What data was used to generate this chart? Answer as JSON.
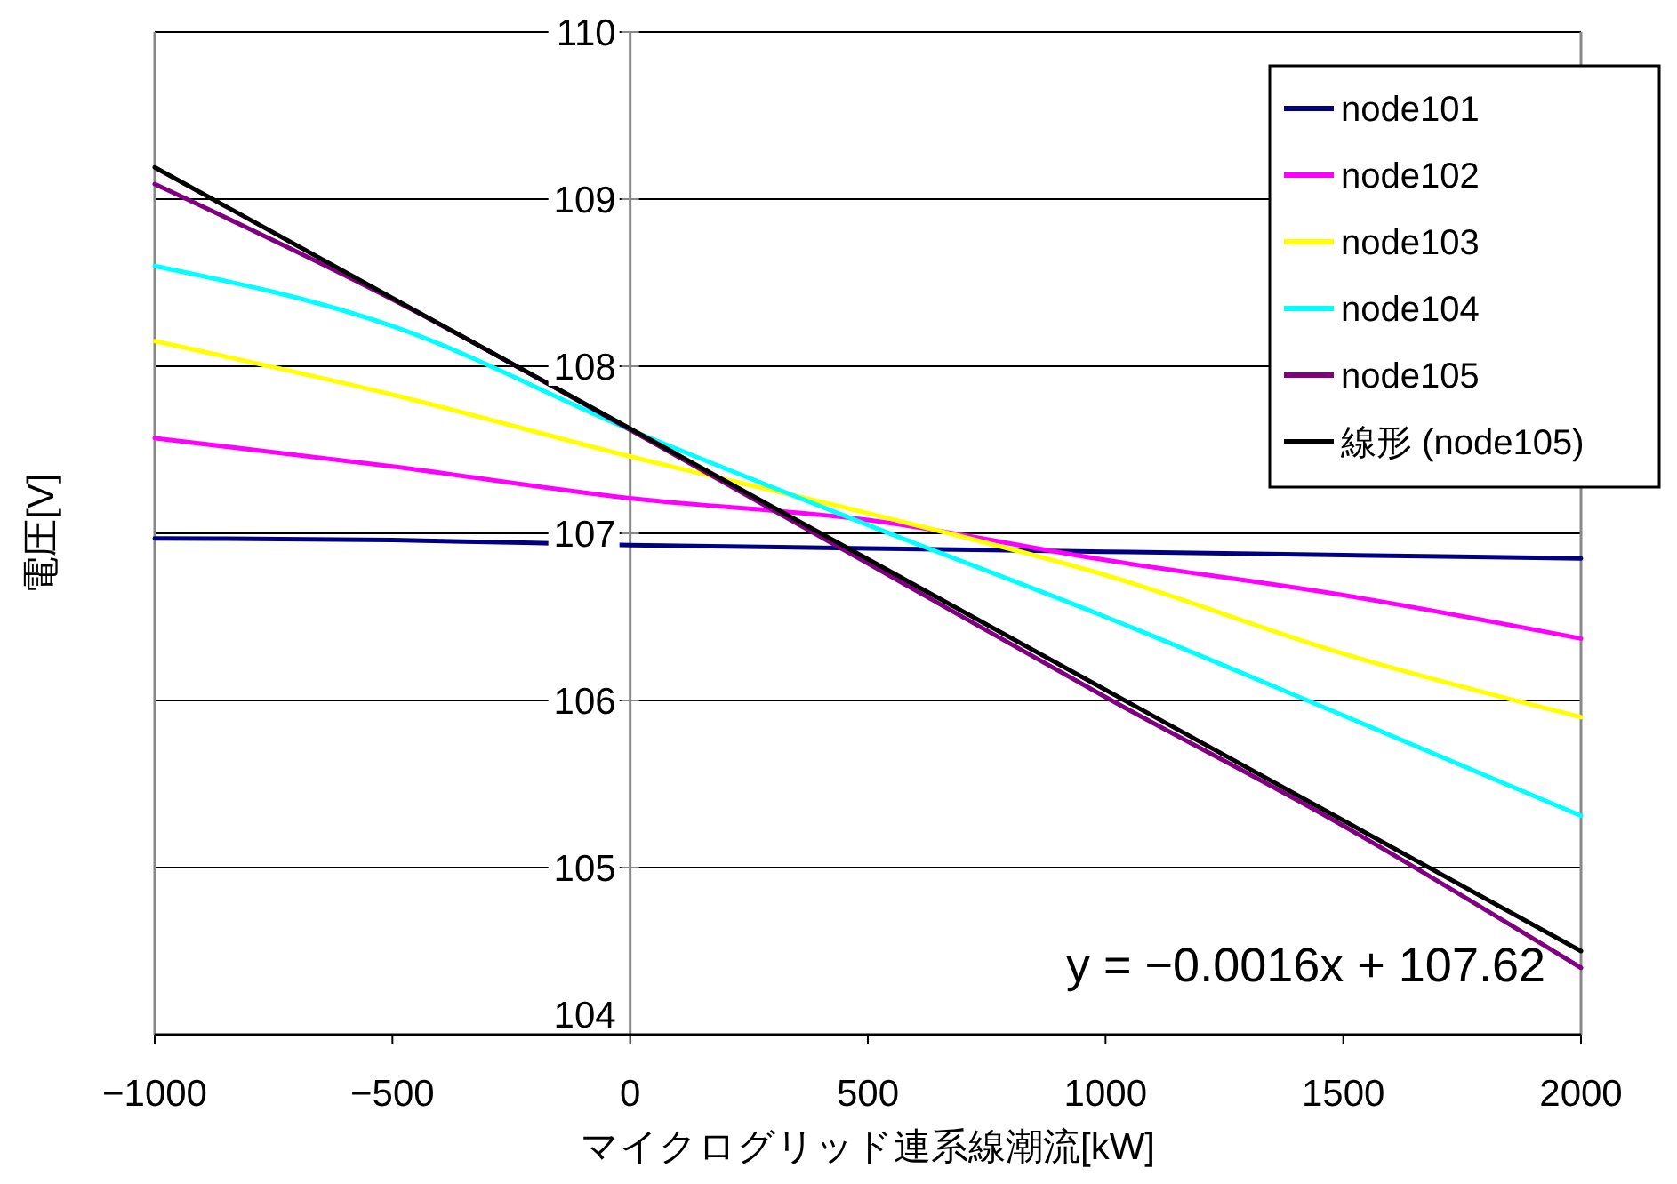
{
  "chart_data": {
    "type": "line",
    "xlabel": "マイクログリッド連系線潮流[kW]",
    "ylabel": "電圧[V]",
    "x": [
      -1000,
      -500,
      0,
      500,
      1000,
      1500,
      2000
    ],
    "xlim": [
      -1000,
      2000
    ],
    "xticks": [
      -1000,
      -500,
      0,
      500,
      1000,
      1500,
      2000
    ],
    "ylim": [
      104,
      110
    ],
    "yticks": [
      104,
      105,
      106,
      107,
      108,
      109,
      110
    ],
    "grid": "y",
    "legend": "top right",
    "marker": "none",
    "line_style": "solid",
    "series": [
      {
        "name": "node101",
        "color": "#000080",
        "values": [
          106.97,
          106.96,
          106.93,
          106.91,
          106.89,
          106.87,
          106.85
        ]
      },
      {
        "name": "node102",
        "color": "#ff00ff",
        "values": [
          107.57,
          107.4,
          107.21,
          107.08,
          106.84,
          106.63,
          106.37
        ]
      },
      {
        "name": "node103",
        "color": "#ffff00",
        "values": [
          108.15,
          107.83,
          107.46,
          107.12,
          106.75,
          106.28,
          105.9
        ]
      },
      {
        "name": "node104",
        "color": "#00ffff",
        "values": [
          108.6,
          108.24,
          107.62,
          107.05,
          106.5,
          105.91,
          105.31
        ]
      },
      {
        "name": "node105",
        "color": "#800080",
        "values": [
          109.09,
          108.4,
          107.62,
          106.82,
          106.02,
          105.25,
          104.4
        ]
      },
      {
        "name": "線形 (node105)",
        "color": "#000000",
        "type": "line",
        "x": [
          -1000,
          2000
        ],
        "values": [
          109.19,
          104.5
        ]
      }
    ],
    "annotations": [
      "y = −0.0016x + 107.62"
    ]
  }
}
